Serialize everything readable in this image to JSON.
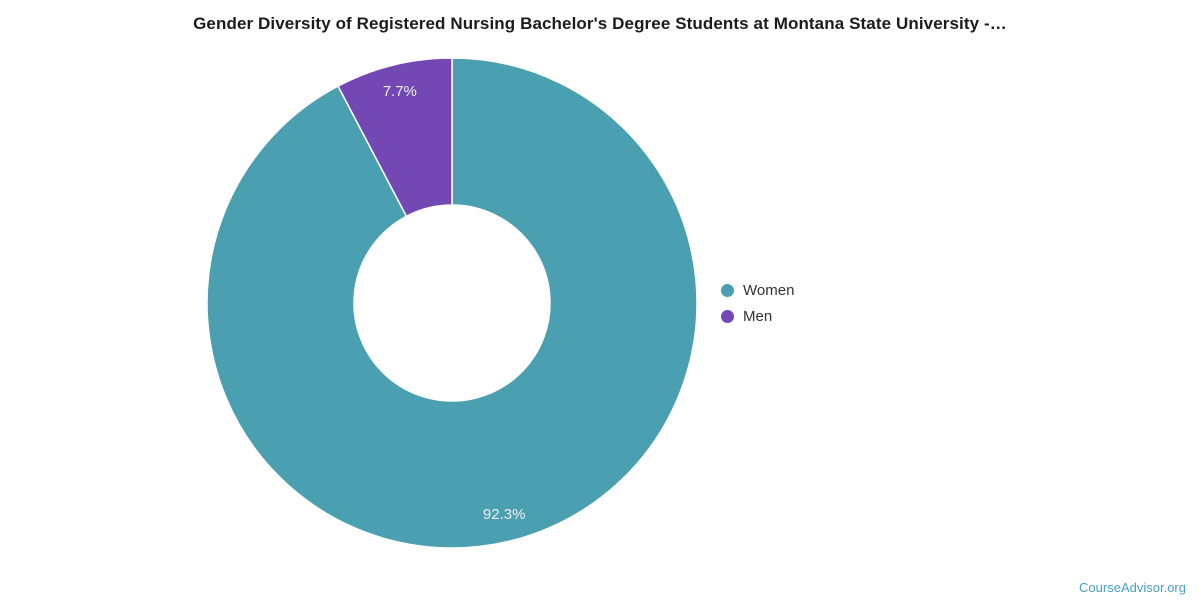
{
  "page": {
    "title": "Gender Diversity of Registered Nursing Bachelor's Degree Students at Montana State University -…",
    "footer_link": "CourseAdvisor.org"
  },
  "colors": {
    "women_slice": "#4AA0B0",
    "men_slice": "#7347B4",
    "title_text": "#1C1C1C",
    "legend_text": "#333333",
    "slice_label_text": "#EFEFEF",
    "footer_link_text": "#4A9EC6",
    "background": "#FFFFFF",
    "slice_border": "#FFFFFF"
  },
  "chart_data": {
    "type": "pie",
    "donut": true,
    "title": "Gender Diversity of Registered Nursing Bachelor's Degree Students at Montana State University -…",
    "start_angle_deg": 0,
    "direction": "clockwise",
    "legend_position": "right",
    "inner_radius_ratio": 0.4,
    "series": [
      {
        "name": "Women",
        "value": 92.3,
        "label": "92.3%",
        "color": "#4AA0B0"
      },
      {
        "name": "Men",
        "value": 7.7,
        "label": "7.7%",
        "color": "#7347B4"
      }
    ]
  }
}
